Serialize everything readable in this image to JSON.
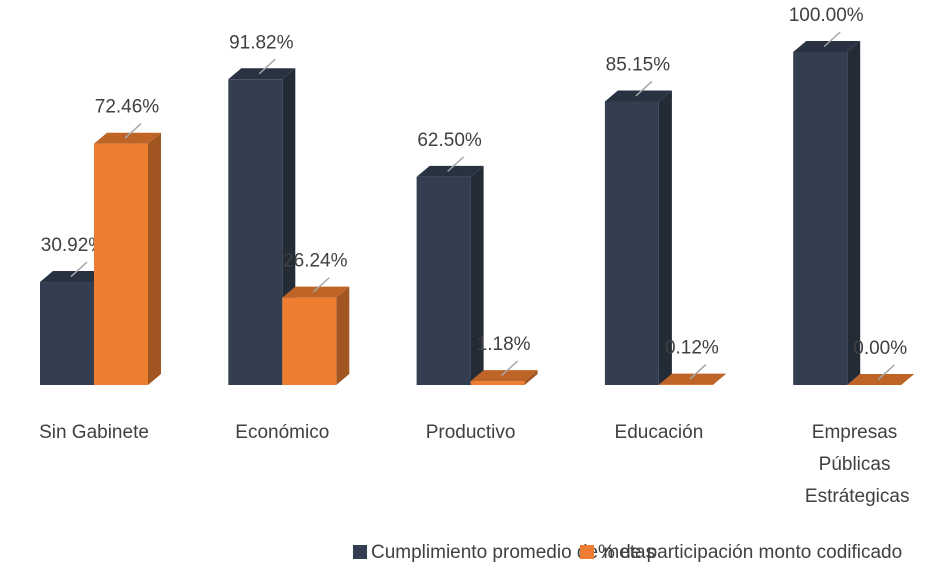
{
  "chart_data": {
    "type": "bar3d",
    "categories": [
      "Sin Gabinete",
      "Económico",
      "Productivo",
      "Educación",
      "Empresas Públicas Estrátegicas"
    ],
    "series": [
      {
        "name": "Cumplimiento promedio de metas",
        "color": "#333f50",
        "values": [
          30.92,
          91.82,
          62.5,
          85.15,
          100
        ],
        "value_labels": [
          "30.92%",
          "91.82%",
          "62.50%",
          "85.15%",
          "100.00%"
        ]
      },
      {
        "name": "% de participación monto codificado",
        "color": "#ed7d31",
        "values": [
          72.46,
          26.24,
          1.18,
          0.12,
          0
        ],
        "value_labels": [
          "72.46%",
          "26.24%",
          "1.18%",
          "0.12%",
          "0.00%"
        ]
      }
    ],
    "ylim": [
      0,
      100
    ],
    "legend": "bottom"
  }
}
